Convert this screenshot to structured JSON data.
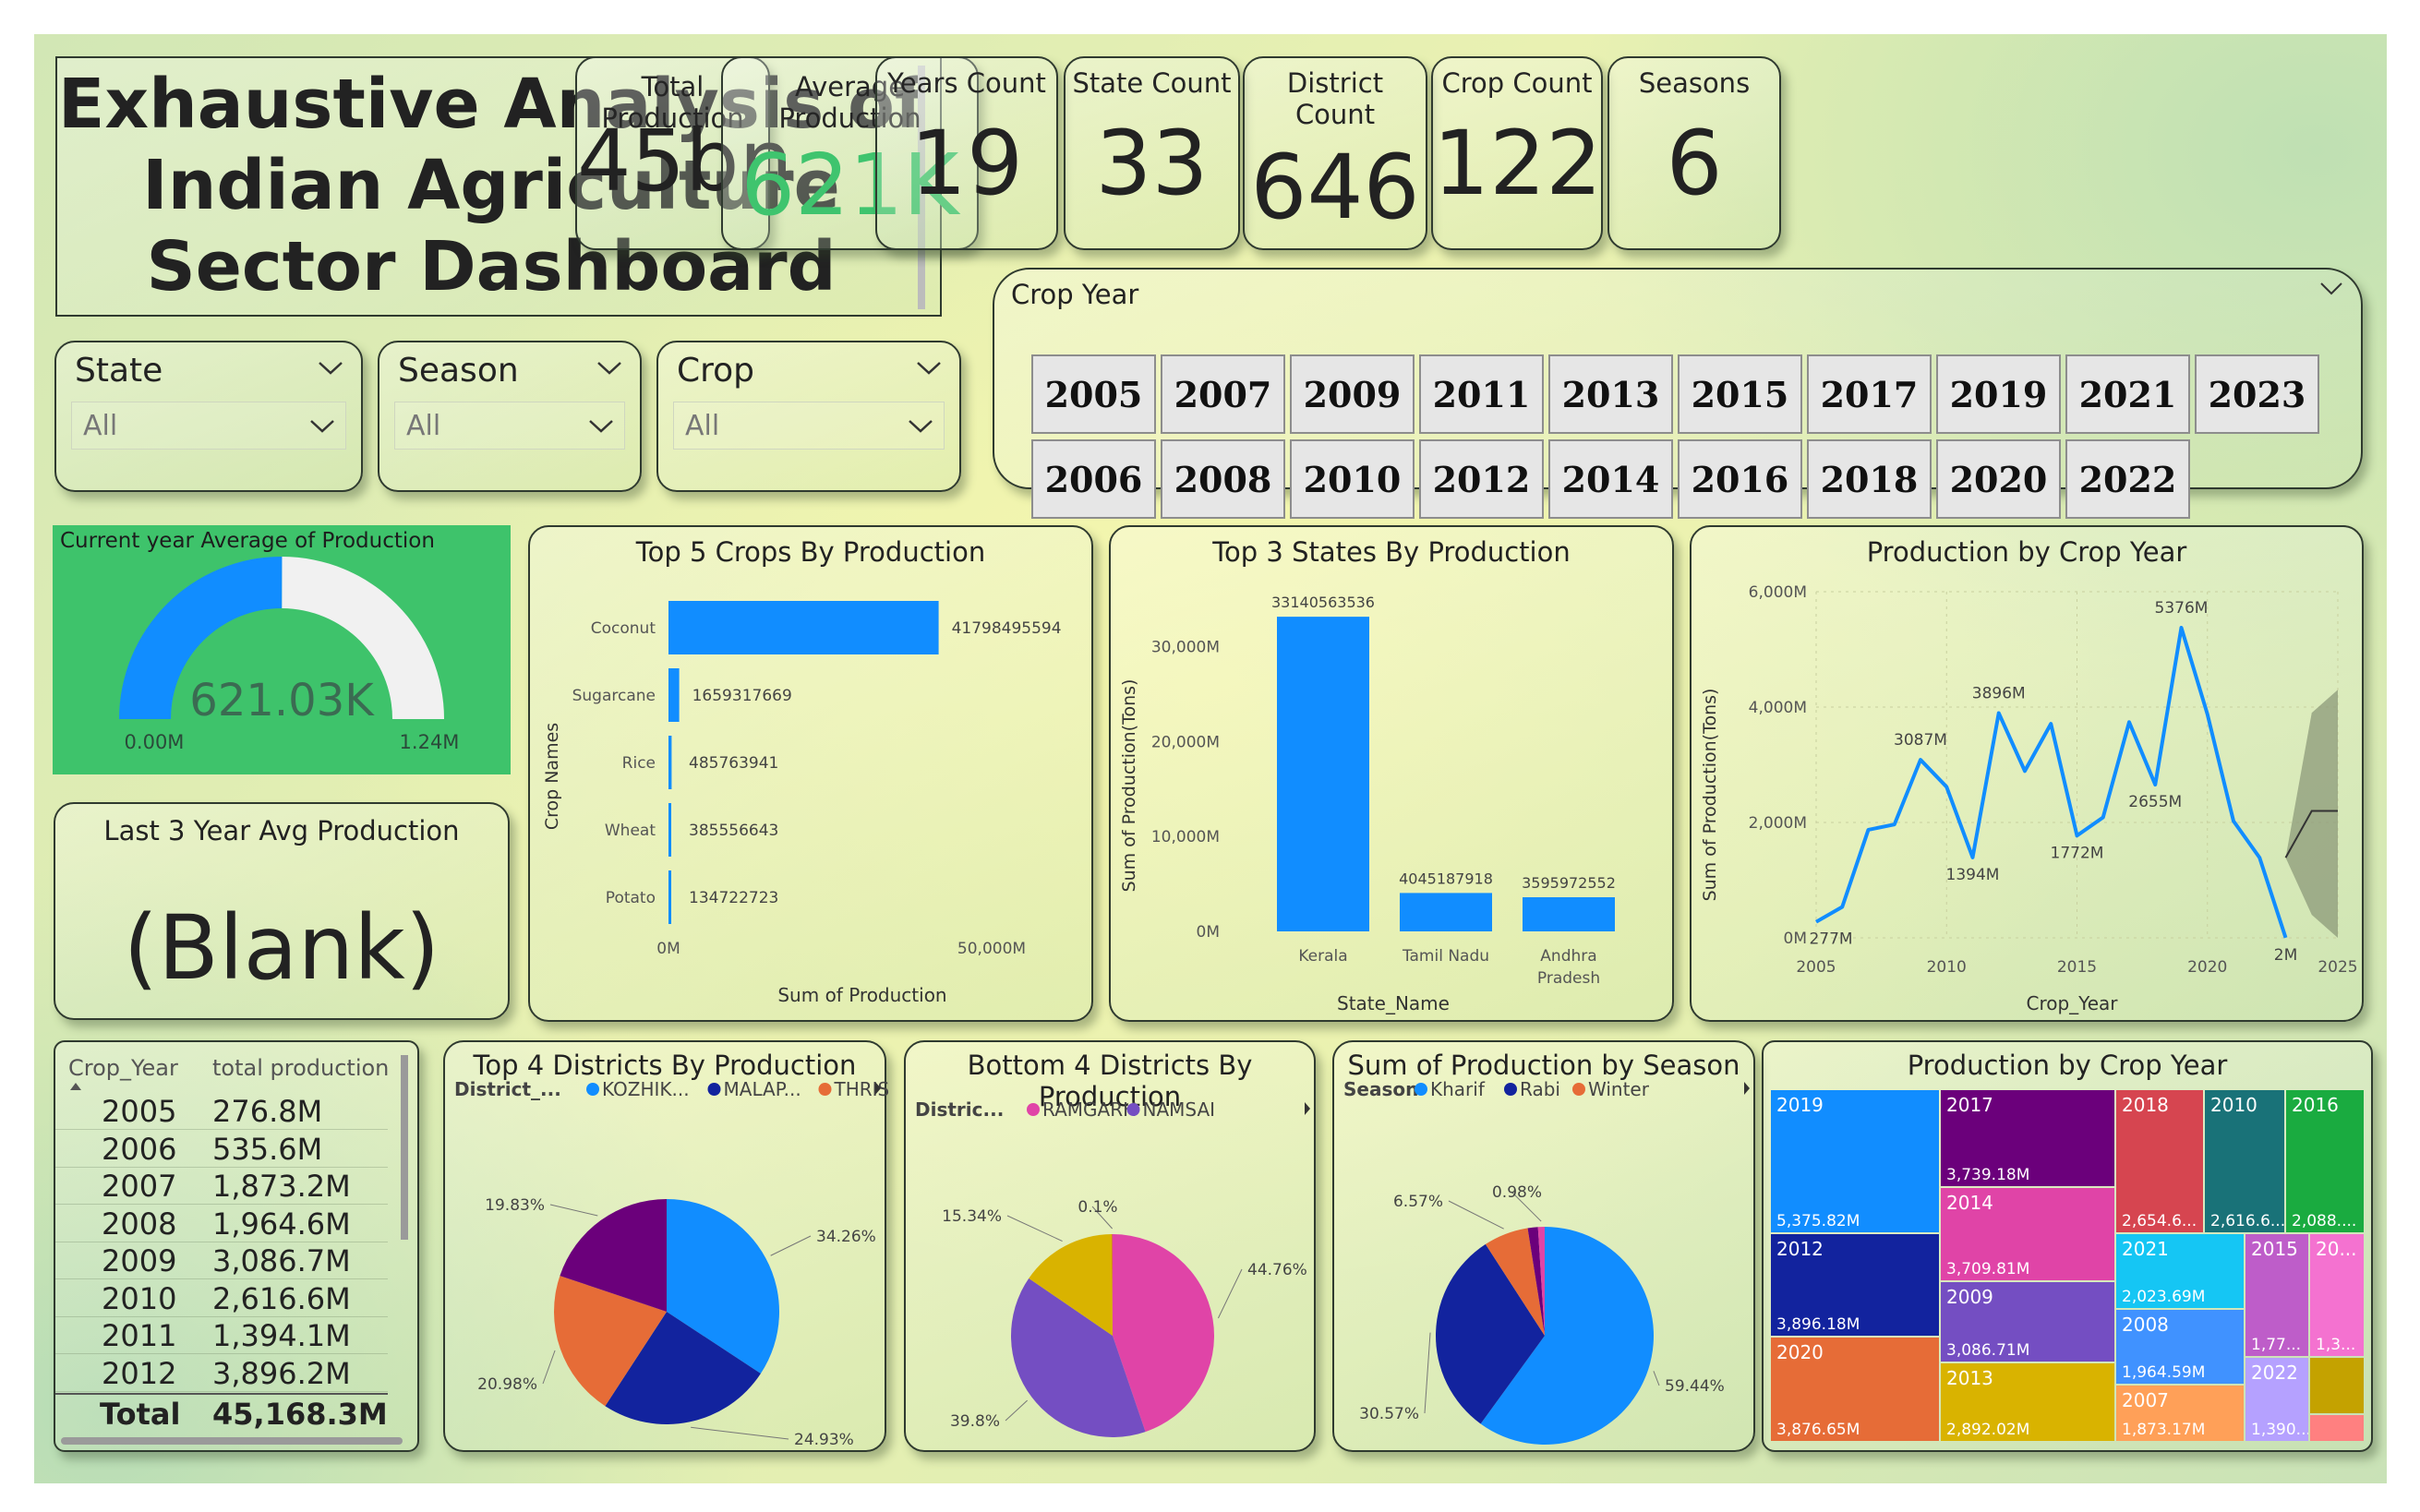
{
  "title": {
    "line1": "Exhaustive Analysis of",
    "line2": "Indian Agriculture",
    "line3": "Sector Dashboard"
  },
  "kpis": [
    {
      "title": "Total Production",
      "value": "45bn",
      "color": "#222222"
    },
    {
      "title": "Average Production",
      "value": "621K",
      "color": "#3fc46e"
    },
    {
      "title": "Years Count",
      "value": "19",
      "color": "#222222"
    },
    {
      "title": "State Count",
      "value": "33",
      "color": "#222222"
    },
    {
      "title": "District Count",
      "value": "646",
      "color": "#222222"
    },
    {
      "title": "Crop Count",
      "value": "122",
      "color": "#222222"
    },
    {
      "title": "Seasons",
      "value": "6",
      "color": "#222222"
    }
  ],
  "slicers": [
    {
      "label": "State",
      "value": "All"
    },
    {
      "label": "Season",
      "value": "All"
    },
    {
      "label": "Crop",
      "value": "All"
    }
  ],
  "crop_year": {
    "label": "Crop Year",
    "row1": [
      "2005",
      "2007",
      "2009",
      "2011",
      "2013",
      "2015",
      "2017",
      "2019",
      "2021",
      "2023"
    ],
    "row2": [
      "2006",
      "2008",
      "2010",
      "2012",
      "2014",
      "2016",
      "2018",
      "2020",
      "2022"
    ]
  },
  "gauge": {
    "title": "Current year Average of Production",
    "value": 621030,
    "value_label": "621.03K",
    "min_label": "0.00M",
    "max_label": "1.24M",
    "max": 1240000,
    "bg": "#3ec36b",
    "fill": "#118dff"
  },
  "last3": {
    "title": "Last 3 Year Avg Production",
    "value": "(Blank)"
  },
  "table": {
    "headers": [
      "Crop_Year",
      "total production"
    ],
    "rows": [
      [
        "2005",
        "276.8M"
      ],
      [
        "2006",
        "535.6M"
      ],
      [
        "2007",
        "1,873.2M"
      ],
      [
        "2008",
        "1,964.6M"
      ],
      [
        "2009",
        "3,086.7M"
      ],
      [
        "2010",
        "2,616.6M"
      ],
      [
        "2011",
        "1,394.1M"
      ],
      [
        "2012",
        "3,896.2M"
      ]
    ],
    "total": [
      "Total",
      "45,168.3M"
    ]
  },
  "chart_data": [
    {
      "type": "bar",
      "orientation": "horizontal",
      "title": "Top 5 Crops By Production",
      "xlabel": "Sum of Production",
      "ylabel": "Crop Names",
      "categories": [
        "Coconut",
        "Sugarcane",
        "Rice",
        "Wheat",
        "Potato"
      ],
      "values": [
        41798495594,
        1659317669,
        485763941,
        385556643,
        134722723
      ],
      "labels": [
        "41798495594",
        "1659317669",
        "485763941",
        "385556643",
        "134722723"
      ],
      "xticks": [
        "0M",
        "50,000M"
      ],
      "xlim": [
        0,
        50000000000
      ],
      "color": "#118dff"
    },
    {
      "type": "bar",
      "title": "Top 3 States By Production",
      "xlabel": "State_Name",
      "ylabel": "Sum of Production(Tons)",
      "categories": [
        [
          "Kerala"
        ],
        [
          "Tamil Nadu"
        ],
        [
          "Andhra",
          "Pradesh"
        ]
      ],
      "values": [
        33140563536,
        4045187918,
        3595972552
      ],
      "labels": [
        "33140563536",
        "4045187918",
        "3595972552"
      ],
      "yticks": [
        {
          "v": 0,
          "l": "0M"
        },
        {
          "v": 10000000000,
          "l": "10,000M"
        },
        {
          "v": 20000000000,
          "l": "20,000M"
        },
        {
          "v": 30000000000,
          "l": "30,000M"
        }
      ],
      "ylim": [
        0,
        35000000000
      ],
      "color": "#118dff"
    },
    {
      "type": "line",
      "title": "Production by Crop Year",
      "xlabel": "Crop_Year",
      "ylabel": "Sum of Production(Tons)",
      "x": [
        2005,
        2006,
        2007,
        2008,
        2009,
        2010,
        2011,
        2012,
        2013,
        2014,
        2015,
        2016,
        2017,
        2018,
        2019,
        2020,
        2021,
        2022,
        2023
      ],
      "y": [
        277,
        536,
        1873,
        1965,
        3087,
        2617,
        1394,
        3896,
        2892,
        3710,
        1772,
        2088,
        3739,
        2655,
        5376,
        3877,
        2024,
        1390,
        2
      ],
      "point_labels": [
        {
          "i": 0,
          "l": "277M"
        },
        {
          "i": 4,
          "l": "3087M"
        },
        {
          "i": 6,
          "l": "1394M"
        },
        {
          "i": 7,
          "l": "3896M"
        },
        {
          "i": 10,
          "l": "1772M"
        },
        {
          "i": 13,
          "l": "2655M"
        },
        {
          "i": 14,
          "l": "5376M"
        },
        {
          "i": 18,
          "l": "2M"
        }
      ],
      "yticks": [
        {
          "v": 0,
          "l": "0M"
        },
        {
          "v": 2000,
          "l": "2,000M"
        },
        {
          "v": 4000,
          "l": "4,000M"
        },
        {
          "v": 6000,
          "l": "6,000M"
        }
      ],
      "xticks": [
        2005,
        2010,
        2015,
        2020,
        2025
      ],
      "xlim": [
        2005,
        2025
      ],
      "ylim": [
        0,
        6000
      ],
      "color": "#118dff",
      "forecast": {
        "x": [
          2023,
          2024,
          2025
        ],
        "mid": [
          1390,
          2200,
          2200
        ],
        "upper": [
          1390,
          3900,
          4300
        ],
        "lower": [
          1390,
          400,
          0
        ]
      }
    },
    {
      "type": "pie",
      "title": "Top 4 Districts By Production",
      "legend_title": "District_...",
      "legend": [
        {
          "name": "KOZHIK...",
          "color": "#118dff"
        },
        {
          "name": "MALAP...",
          "color": "#12239e"
        },
        {
          "name": "THRISSUR",
          "color": "#e66c37"
        }
      ],
      "slices": [
        {
          "value": 34.26,
          "label": "34.26%",
          "color": "#118dff"
        },
        {
          "value": 24.93,
          "label": "24.93%",
          "color": "#12239e"
        },
        {
          "value": 20.98,
          "label": "20.98%",
          "color": "#e66c37"
        },
        {
          "value": 19.83,
          "label": "19.83%",
          "color": "#6b007b"
        }
      ]
    },
    {
      "type": "pie",
      "title": "Bottom 4 Districts By Production",
      "legend_title": "Distric...",
      "legend": [
        {
          "name": "RAMGARH",
          "color": "#e044a7"
        },
        {
          "name": "NAMSAI",
          "color": "#744ec2"
        }
      ],
      "slices": [
        {
          "value": 44.76,
          "label": "44.76%",
          "color": "#e044a7"
        },
        {
          "value": 39.8,
          "label": "39.8%",
          "color": "#744ec2"
        },
        {
          "value": 15.34,
          "label": "15.34%",
          "color": "#d9b300"
        },
        {
          "value": 0.1,
          "label": "0.1%",
          "color": "#d64550"
        }
      ]
    },
    {
      "type": "pie",
      "title": "Sum of Production by Season",
      "legend_title": "Season",
      "legend": [
        {
          "name": "Kharif",
          "color": "#118dff"
        },
        {
          "name": "Rabi",
          "color": "#12239e"
        },
        {
          "name": "Winter",
          "color": "#e66c37"
        }
      ],
      "slices": [
        {
          "value": 59.44,
          "label": "59.44%",
          "color": "#118dff"
        },
        {
          "value": 30.57,
          "label": "30.57%",
          "color": "#12239e"
        },
        {
          "value": 6.57,
          "label": "6.57%",
          "color": "#e66c37"
        },
        {
          "value": 1.5,
          "label": "",
          "color": "#6b007b"
        },
        {
          "value": 0.98,
          "label": "0.98%",
          "color": "#e044a7"
        }
      ]
    },
    {
      "type": "treemap",
      "title": "Production by Crop Year",
      "cells": [
        {
          "year": "2019",
          "value": "5,375.82M",
          "color": "#118dff"
        },
        {
          "year": "2012",
          "value": "3,896.18M",
          "color": "#12239e"
        },
        {
          "year": "2020",
          "value": "3,876.65M",
          "color": "#e66c37"
        },
        {
          "year": "2017",
          "value": "3,739.18M",
          "color": "#6b007b"
        },
        {
          "year": "2014",
          "value": "3,709.81M",
          "color": "#e044a7"
        },
        {
          "year": "2009",
          "value": "3,086.71M",
          "color": "#744ec2"
        },
        {
          "year": "2013",
          "value": "2,892.02M",
          "color": "#d9b300"
        },
        {
          "year": "2018",
          "value": "2,654.6...",
          "color": "#d64550"
        },
        {
          "year": "2010",
          "value": "2,616.6...",
          "color": "#197278"
        },
        {
          "year": "2016",
          "value": "2,088....",
          "color": "#1aab40"
        },
        {
          "year": "2021",
          "value": "2,023.69M",
          "color": "#15c6f4"
        },
        {
          "year": "2008",
          "value": "1,964.59M",
          "color": "#4092ff"
        },
        {
          "year": "2007",
          "value": "1,873.17M",
          "color": "#ffa058"
        },
        {
          "year": "2015",
          "value": "1,77...",
          "color": "#be5dc9"
        },
        {
          "year": "20...",
          "value": "1,3...",
          "color": "#f472d0"
        },
        {
          "year": "2022",
          "value": "1,390....",
          "color": "#b5a1ff"
        },
        {
          "year": "",
          "value": "",
          "color": "#c4a200"
        },
        {
          "year": "",
          "value": "",
          "color": "#ff8080"
        }
      ]
    }
  ]
}
